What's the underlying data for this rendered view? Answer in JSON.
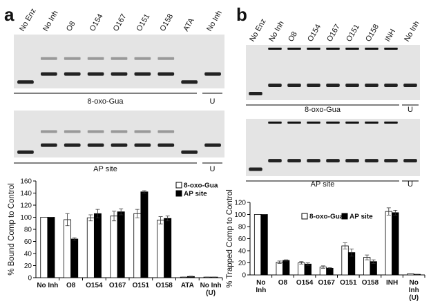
{
  "panel_labels": [
    "a",
    "b"
  ],
  "gels": [
    {
      "lanes": [
        "No Enz",
        "No Inh",
        "O8",
        "O154",
        "O167",
        "O151",
        "O158",
        "ATA",
        "No Inh"
      ],
      "labels": [
        "8-oxo-Gua",
        "AP site"
      ],
      "u_label": "U"
    },
    {
      "lanes": [
        "No Enz",
        "No Inh",
        "O8",
        "O154",
        "O167",
        "O151",
        "O158",
        "INH",
        "No Inh"
      ],
      "labels": [
        "8-oxo-Gua",
        "AP site"
      ],
      "u_label": "U"
    }
  ],
  "chart_data": [
    {
      "type": "bar",
      "ylabel": "% Bound Comp to Control",
      "categories": [
        "No Inh",
        "O8",
        "O154",
        "O167",
        "O151",
        "O158",
        "ATA",
        "No Inh\n(U)"
      ],
      "series": [
        {
          "name": "8-oxo-Gua",
          "color": "#ffffff",
          "values": [
            100,
            96,
            99,
            102,
            106,
            95,
            1,
            1
          ],
          "errors": [
            0,
            10,
            5,
            8,
            7,
            6,
            0,
            0
          ]
        },
        {
          "name": "AP site",
          "color": "#000000",
          "values": [
            100,
            64,
            106,
            109,
            142,
            98,
            2,
            1
          ],
          "errors": [
            0,
            2,
            7,
            5,
            2,
            4,
            0.5,
            0
          ]
        }
      ],
      "ylim": [
        0,
        160
      ],
      "yticks": [
        0,
        20,
        40,
        60,
        80,
        100,
        120,
        140,
        160
      ],
      "legend": "upper right"
    },
    {
      "type": "bar",
      "ylabel": "% Trapped Comp to Control",
      "categories": [
        "No\nInh",
        "O8",
        "O154",
        "O167",
        "O151",
        "O158",
        "INH",
        "No\nInh\n(U)"
      ],
      "series": [
        {
          "name": "8-oxo-Gua",
          "color": "#ffffff",
          "values": [
            100,
            21,
            20,
            13,
            48,
            29,
            105,
            2
          ],
          "errors": [
            0,
            2,
            2,
            2,
            5,
            4,
            6,
            0
          ]
        },
        {
          "name": "AP site",
          "color": "#000000",
          "values": [
            100,
            24,
            18,
            11,
            37,
            22,
            103,
            1
          ],
          "errors": [
            0,
            1,
            2,
            1,
            6,
            3,
            4,
            0
          ]
        }
      ],
      "ylim": [
        0,
        120
      ],
      "yticks": [
        0,
        20,
        40,
        60,
        80,
        100,
        120
      ],
      "legend": "upper center"
    }
  ]
}
